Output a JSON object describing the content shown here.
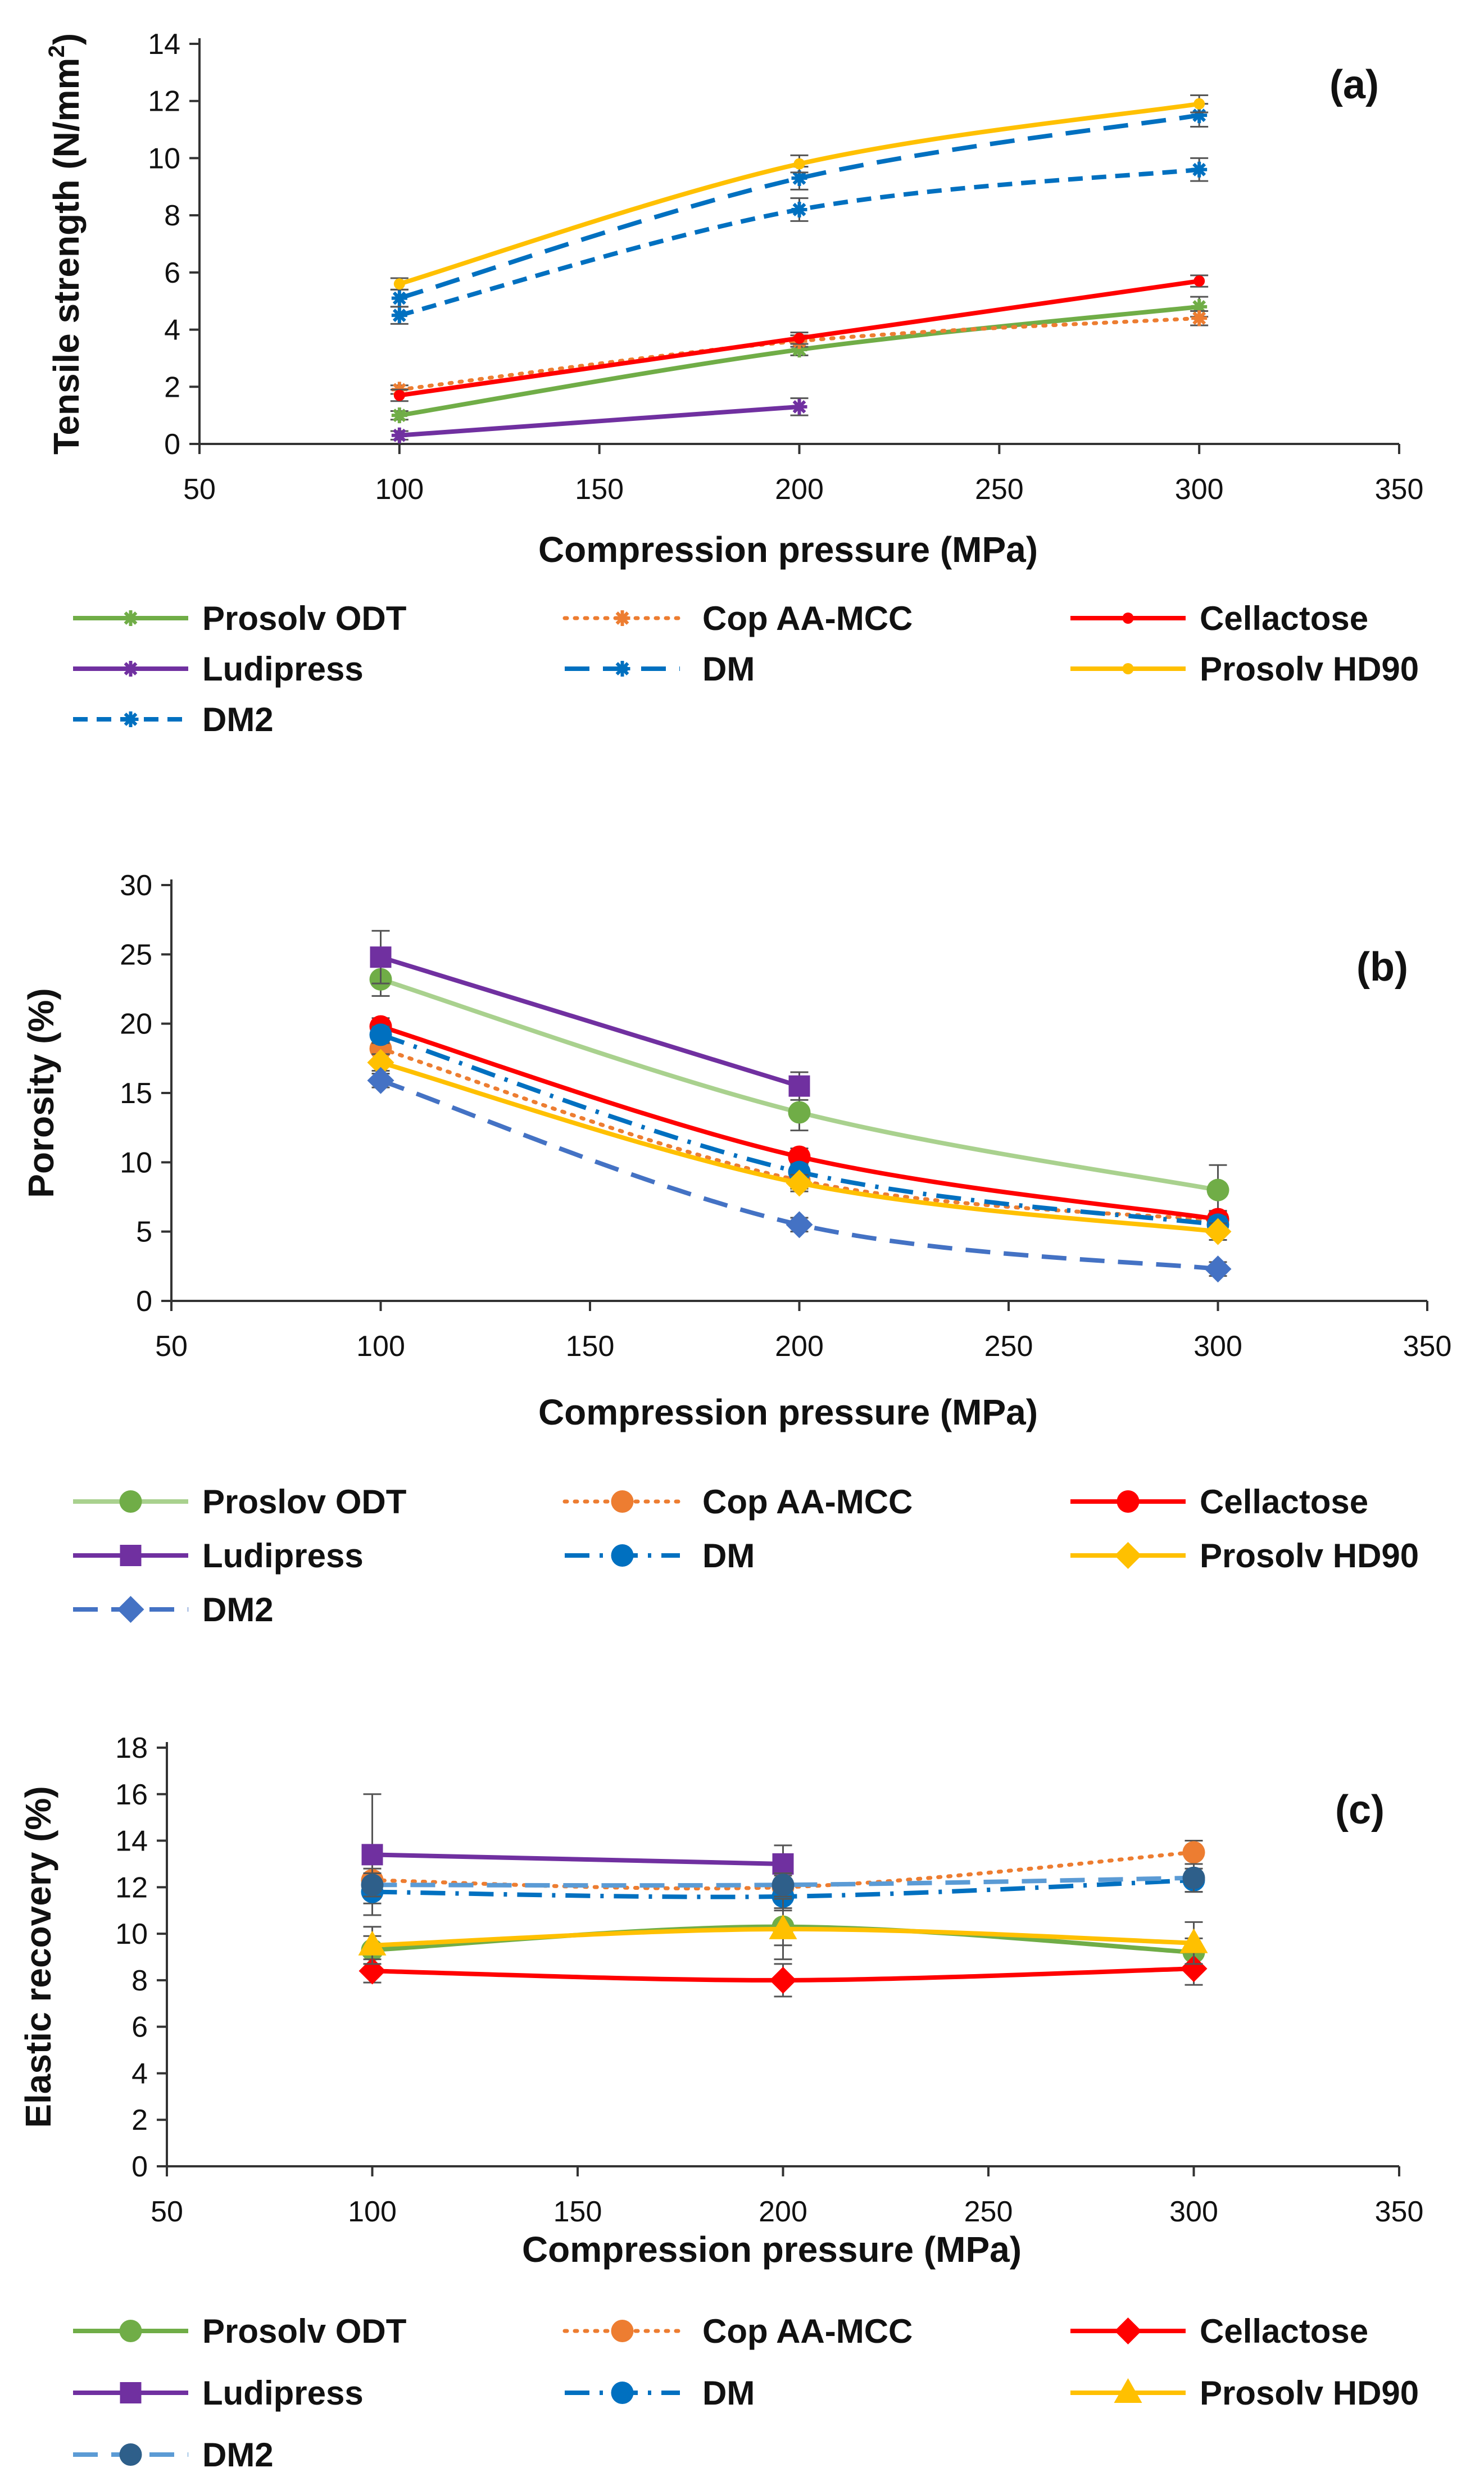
{
  "chart_data": [
    {
      "type": "line",
      "panel_label": "(a)",
      "xlabel": "Compression pressure (MPa)",
      "ylabel": "Tensile strength (N/mm²)",
      "ylabel_parts": {
        "main": "Tensile strength (N/mm",
        "sup": "2",
        "end": ")"
      },
      "xlim": [
        50,
        350
      ],
      "ylim": [
        0,
        14
      ],
      "xticks": [
        50,
        100,
        150,
        200,
        250,
        300,
        350
      ],
      "yticks": [
        0,
        2,
        4,
        6,
        8,
        10,
        12,
        14
      ],
      "grid": false,
      "series": [
        {
          "name": "Prosolv ODT",
          "color": "#70ad47",
          "dash": "solid",
          "marker": "star",
          "x": [
            100,
            200,
            300
          ],
          "values": [
            1.0,
            3.3,
            4.8
          ],
          "err": [
            0.15,
            0.2,
            0.35
          ]
        },
        {
          "name": "Cop AA-MCC",
          "color": "#ed7d31",
          "dash": "dot",
          "marker": "star",
          "x": [
            100,
            200,
            300
          ],
          "values": [
            1.9,
            3.6,
            4.4
          ],
          "err": [
            0.15,
            0.2,
            0.25
          ]
        },
        {
          "name": "Cellactose",
          "color": "#ff0000",
          "dash": "solid",
          "marker": "dot",
          "x": [
            100,
            200,
            300
          ],
          "values": [
            1.7,
            3.7,
            5.7
          ],
          "err": [
            0.2,
            0.2,
            0.2
          ]
        },
        {
          "name": "Ludipress",
          "color": "#7030a0",
          "dash": "solid",
          "marker": "star",
          "x": [
            100,
            200
          ],
          "values": [
            0.3,
            1.3
          ],
          "err": [
            0.15,
            0.3
          ]
        },
        {
          "name": "DM",
          "color": "#0070c0",
          "dash": "dash",
          "marker": "star",
          "x": [
            100,
            200,
            300
          ],
          "values": [
            5.1,
            9.3,
            11.5
          ],
          "err": [
            0.3,
            0.4,
            0.4
          ]
        },
        {
          "name": "Prosolv HD90",
          "color": "#ffc000",
          "dash": "solid",
          "marker": "dot",
          "x": [
            100,
            200,
            300
          ],
          "values": [
            5.6,
            9.8,
            11.9
          ],
          "err": [
            0.2,
            0.3,
            0.3
          ]
        },
        {
          "name": "DM2",
          "color": "#0070c0",
          "dash": "shortdash",
          "marker": "star",
          "x": [
            100,
            200,
            300
          ],
          "values": [
            4.5,
            8.2,
            9.6
          ],
          "err": [
            0.3,
            0.4,
            0.4
          ]
        }
      ]
    },
    {
      "type": "line",
      "panel_label": "(b)",
      "xlabel": "Compression pressure (MPa)",
      "ylabel": "Porosity (%)",
      "xlim": [
        50,
        350
      ],
      "ylim": [
        0,
        30
      ],
      "xticks": [
        50,
        100,
        150,
        200,
        250,
        300,
        350
      ],
      "yticks": [
        0,
        5,
        10,
        15,
        20,
        25,
        30
      ],
      "grid": false,
      "series": [
        {
          "name": "Proslov ODT",
          "color": "#a9d18e",
          "dash": "solid",
          "marker": "circle",
          "markerColor": "#70ad47",
          "x": [
            100,
            200,
            300
          ],
          "values": [
            23.2,
            13.6,
            8.0
          ],
          "err": [
            1.2,
            1.3,
            1.8
          ]
        },
        {
          "name": "Cop AA-MCC",
          "color": "#ed7d31",
          "dash": "dot",
          "marker": "circle",
          "x": [
            100,
            200,
            300
          ],
          "values": [
            18.2,
            8.7,
            5.8
          ],
          "err": [
            0.8,
            0.6,
            0.6
          ]
        },
        {
          "name": "Cellactose",
          "color": "#ff0000",
          "dash": "solid",
          "marker": "circle",
          "x": [
            100,
            200,
            300
          ],
          "values": [
            19.8,
            10.4,
            5.9
          ],
          "err": [
            0.6,
            0.6,
            0.6
          ]
        },
        {
          "name": "Ludipress",
          "color": "#7030a0",
          "dash": "solid",
          "marker": "square",
          "x": [
            100,
            200
          ],
          "values": [
            24.8,
            15.5
          ],
          "err": [
            1.9,
            1.0
          ]
        },
        {
          "name": "DM",
          "color": "#0070c0",
          "dash": "dashdot",
          "marker": "circle",
          "x": [
            100,
            200,
            300
          ],
          "values": [
            19.2,
            9.3,
            5.5
          ],
          "err": [
            0.6,
            0.6,
            0.6
          ]
        },
        {
          "name": "Prosolv HD90",
          "color": "#ffc000",
          "dash": "solid",
          "marker": "diamond",
          "x": [
            100,
            200,
            300
          ],
          "values": [
            17.2,
            8.5,
            5.0
          ],
          "err": [
            0.6,
            0.6,
            0.6
          ]
        },
        {
          "name": "DM2",
          "color": "#4472c4",
          "dash": "dash",
          "marker": "diamond",
          "x": [
            100,
            200,
            300
          ],
          "values": [
            15.9,
            5.5,
            2.3
          ],
          "err": [
            0.5,
            0.5,
            0.5
          ]
        }
      ]
    },
    {
      "type": "line",
      "panel_label": "(c)",
      "xlabel": "Compression pressure (MPa)",
      "ylabel": "Elastic recovery (%)",
      "xlim": [
        50,
        350
      ],
      "ylim": [
        0,
        18
      ],
      "xticks": [
        50,
        100,
        150,
        200,
        250,
        300,
        350
      ],
      "yticks": [
        0,
        2,
        4,
        6,
        8,
        10,
        12,
        14,
        16,
        18
      ],
      "grid": false,
      "series": [
        {
          "name": "Prosolv ODT",
          "color": "#70ad47",
          "dash": "solid",
          "marker": "circle",
          "x": [
            100,
            200,
            300
          ],
          "values": [
            9.3,
            10.3,
            9.2
          ],
          "err": [
            0.6,
            0.8,
            0.6
          ]
        },
        {
          "name": "Cop AA-MCC",
          "color": "#ed7d31",
          "dash": "dot",
          "marker": "circle",
          "x": [
            100,
            200,
            300
          ],
          "values": [
            12.3,
            12.0,
            13.5
          ],
          "err": [
            0.5,
            0.5,
            0.5
          ]
        },
        {
          "name": "Cellactose",
          "color": "#ff0000",
          "dash": "solid",
          "marker": "diamond",
          "x": [
            100,
            200,
            300
          ],
          "values": [
            8.4,
            8.0,
            8.5
          ],
          "err": [
            0.5,
            0.7,
            0.7
          ]
        },
        {
          "name": "Ludipress",
          "color": "#7030a0",
          "dash": "solid",
          "marker": "square",
          "x": [
            100,
            200
          ],
          "values": [
            13.4,
            13.0
          ],
          "err": [
            2.6,
            0.8
          ]
        },
        {
          "name": "DM",
          "color": "#0070c0",
          "dash": "dashdot",
          "marker": "circle",
          "x": [
            100,
            200,
            300
          ],
          "values": [
            11.8,
            11.6,
            12.3
          ],
          "err": [
            0.5,
            0.6,
            0.5
          ]
        },
        {
          "name": "Prosolv HD90",
          "color": "#ffc000",
          "dash": "solid",
          "marker": "triangle",
          "x": [
            100,
            200,
            300
          ],
          "values": [
            9.5,
            10.2,
            9.6
          ],
          "err": [
            0.8,
            1.3,
            0.9
          ]
        },
        {
          "name": "DM2",
          "color": "#5b9bd5",
          "dash": "dash",
          "marker": "circle",
          "markerColor": "#2e5f8a",
          "x": [
            100,
            200,
            300
          ],
          "values": [
            12.1,
            12.1,
            12.4
          ],
          "err": [
            0.5,
            0.5,
            0.6
          ]
        }
      ]
    }
  ]
}
